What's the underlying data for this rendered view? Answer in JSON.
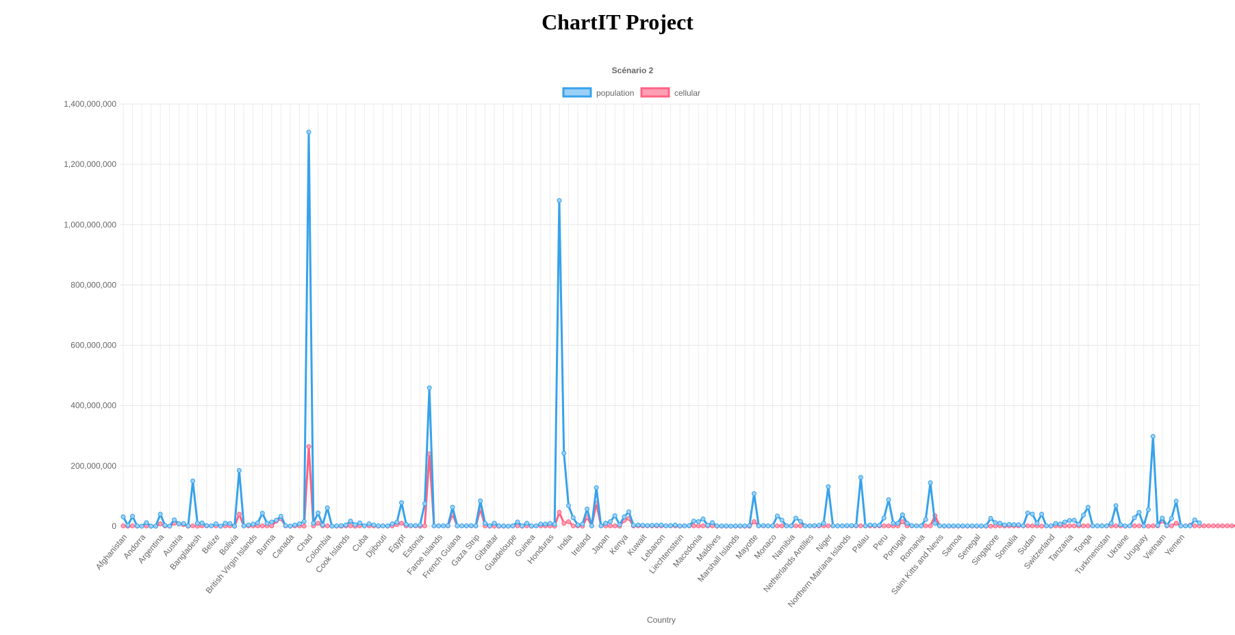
{
  "page": {
    "title": "ChartIT Project"
  },
  "chart_data": {
    "type": "line",
    "title": "Scénario 2",
    "xlabel": "Country",
    "ylabel": "",
    "ylim": [
      0,
      1400000000
    ],
    "yticks": [
      0,
      200000000,
      400000000,
      600000000,
      800000000,
      1000000000,
      1200000000,
      1400000000
    ],
    "ytick_labels": [
      "0",
      "200,000,000",
      "400,000,000",
      "600,000,000",
      "800,000,000",
      "1,000,000,000",
      "1,200,000,000",
      "1,400,000,000"
    ],
    "legend_position": "top-center",
    "grid": true,
    "x_tick_labels": [
      "Afghanistan",
      "Andorra",
      "Argentina",
      "Austria",
      "Bangladesh",
      "Belize",
      "Bolivia",
      "British Virgin Islands",
      "Burma",
      "Canada",
      "Chad",
      "Colombia",
      "Cook Islands",
      "Cuba",
      "Djibouti",
      "Egypt",
      "Estonia",
      "Faroe Islands",
      "French Guiana",
      "Gaza Strip",
      "Gibraltar",
      "Guadeloupe",
      "Guinea",
      "Honduras",
      "India",
      "Ireland",
      "Japan",
      "Kenya",
      "Kuwait",
      "Lebanon",
      "Liechtenstein",
      "Macedonia",
      "Maldives",
      "Marshall Islands",
      "Mayotte",
      "Monaco",
      "Namibia",
      "Netherlands Antilles",
      "Niger",
      "Northern Mariana Islands",
      "Palau",
      "Peru",
      "Portugal",
      "Romania",
      "Saint Kitts and Nevis",
      "Samoa",
      "Senegal",
      "Singapore",
      "Somalia",
      "Sudan",
      "Switzerland",
      "Tanzania",
      "Tonga",
      "Turkmenistan",
      "Ukraine",
      "Uruguay",
      "Vietnam",
      "Yemen"
    ],
    "points_per_label": 4,
    "series": [
      {
        "name": "population",
        "color": "#36a2eb",
        "fill": "#9ad0f5",
        "values": [
          31000000,
          3000000,
          33000000,
          1000000,
          100000,
          12000000,
          69000,
          100000,
          40000000,
          3000000,
          100000,
          21000000,
          8000000,
          9000000,
          1000000,
          150000000,
          10000000,
          11000000,
          2000000,
          1000000,
          8000000,
          300000,
          10000000,
          9000000,
          300000,
          185000000,
          1000000,
          4000000,
          7000000,
          11000000,
          43000000,
          10000000,
          14000000,
          20000000,
          33000000,
          2000000,
          300000,
          4000000,
          8000000,
          16000000,
          1307000000,
          10000000,
          44000000,
          4000000,
          61000000,
          100000,
          1000000,
          2000000,
          4000000,
          17000000,
          5000000,
          11000000,
          1000000,
          8000000,
          4000000,
          1000000,
          1000000,
          1000000,
          8000000,
          13000000,
          78000000,
          6000000,
          2000000,
          2000000,
          4000000,
          75000000,
          459000000,
          1000000,
          1000000,
          1000000,
          2000000,
          63000000,
          1000000,
          1000000,
          1000000,
          2000000,
          1000000,
          84000000,
          10000000,
          1000000,
          10000000,
          1000000,
          1000000,
          100000,
          1000000,
          14000000,
          1000000,
          10000000,
          1000000,
          1000000,
          7000000,
          7000000,
          9000000,
          7000000,
          1080000000,
          242000000,
          68000000,
          28000000,
          4000000,
          7000000,
          57000000,
          1000000,
          128000000,
          1000000,
          10000000,
          15000000,
          35000000,
          5000000,
          31000000,
          48000000,
          3000000,
          4000000,
          3000000,
          2000000,
          3000000,
          3000000,
          4000000,
          1000000,
          2000000,
          4000000,
          1000000,
          1000000,
          2000000,
          17000000,
          15000000,
          24000000,
          3000000,
          12000000,
          1000000,
          1000000,
          1000000,
          100000,
          1000000,
          1000000,
          1000000,
          2000000,
          108000000,
          1000000,
          2000000,
          1000000,
          1000000,
          34000000,
          20000000,
          1000000,
          1000000,
          27000000,
          16000000,
          1000000,
          1000000,
          2000000,
          3000000,
          10000000,
          131000000,
          1000000,
          1000000,
          1000000,
          2000000,
          2000000,
          2000000,
          162000000,
          1000000,
          4000000,
          3000000,
          3000000,
          27000000,
          88000000,
          10000000,
          10000000,
          38000000,
          10000000,
          2000000,
          1000000,
          1000000,
          22000000,
          144000000,
          10000000,
          1000000,
          1000000,
          1000000,
          1000000,
          1000000,
          1000000,
          1000000,
          1000000,
          1000000,
          1000000,
          1000000,
          26000000,
          12000000,
          10000000,
          4000000,
          6000000,
          5000000,
          5000000,
          1000000,
          44000000,
          40000000,
          10000000,
          40000000,
          1000000,
          1000000,
          9000000,
          7000000,
          14000000,
          19000000,
          20000000,
          6000000,
          37000000,
          63000000,
          1000000,
          1000000,
          1000000,
          1000000,
          10000000,
          68000000,
          5000000,
          1000000,
          1000000,
          28000000,
          46000000,
          1000000,
          55000000,
          298000000,
          3000000,
          27000000,
          2000000,
          26000000,
          83000000,
          1000000,
          1000000,
          1000000,
          21000000,
          11000000
        ]
      },
      {
        "name": "cellular",
        "color": "#ff6384",
        "fill": "#ff9fb3",
        "values": [
          1000000,
          100000,
          1000000,
          100000,
          100000,
          500000,
          100000,
          100000,
          8000000,
          1000000,
          100000,
          10000000,
          8000000,
          5000000,
          100000,
          1000000,
          100000,
          1000000,
          1000000,
          1000000,
          1000000,
          100000,
          1000000,
          1000000,
          100000,
          40000000,
          1000000,
          1000000,
          1000000,
          1000000,
          1000000,
          1000000,
          1000000,
          17000000,
          25000000,
          1000000,
          100000,
          1000000,
          1000000,
          100000,
          264000000,
          1000000,
          10000000,
          1000000,
          1000000,
          100000,
          100000,
          100000,
          1000000,
          1000000,
          100000,
          1000000,
          1000000,
          1000000,
          1000000,
          100000,
          1000000,
          100000,
          1000000,
          5000000,
          10000000,
          1000000,
          1000000,
          1000000,
          100000,
          1000000,
          240000000,
          1000000,
          1000000,
          1000000,
          1000000,
          40000000,
          1000000,
          1000000,
          1000000,
          1000000,
          1000000,
          57000000,
          1000000,
          100000,
          100000,
          100000,
          100000,
          100000,
          1000000,
          1000000,
          100000,
          1000000,
          100000,
          1000000,
          1000000,
          1000000,
          1000000,
          100000,
          46000000,
          10000000,
          15000000,
          1000000,
          1000000,
          100000,
          30000000,
          1000000,
          76000000,
          1000000,
          1000000,
          1000000,
          1000000,
          100000,
          19000000,
          26000000,
          1000000,
          1000000,
          1000000,
          1000000,
          1000000,
          1000000,
          1000000,
          1000000,
          1000000,
          1000000,
          100000,
          1000000,
          1000000,
          1000000,
          1000000,
          1000000,
          1000000,
          1000000,
          100000,
          100000,
          100000,
          100000,
          100000,
          100000,
          100000,
          100000,
          15000000,
          1000000,
          1000000,
          1000000,
          1000000,
          1000000,
          1000000,
          1000000,
          1000000,
          1000000,
          1000000,
          1000000,
          1000000,
          1000000,
          1000000,
          1000000,
          1000000,
          1000000,
          1000000,
          1000000,
          1000000,
          1000000,
          1000000,
          1000000,
          1000000,
          1000000,
          1000000,
          1000000,
          1000000,
          1000000,
          1000000,
          1000000,
          15000000,
          1000000,
          1000000,
          1000000,
          1000000,
          1000000,
          1000000,
          35000000,
          1000000,
          100000,
          100000,
          100000,
          100000,
          100000,
          100000,
          100000,
          100000,
          100000,
          100000,
          100000,
          1000000,
          1000000,
          1000000,
          1000000,
          1000000,
          1000000,
          1000000,
          1000000,
          1000000,
          1000000,
          100000,
          1000000,
          100000,
          1000000,
          1000000,
          1000000,
          1000000,
          1000000,
          1000000,
          1000000,
          1000000,
          1000000,
          1000000,
          1000000,
          1000000,
          1000000,
          1000000,
          1000000,
          100000,
          1000000,
          1000000,
          1000000,
          1000000,
          100000,
          1000000,
          1000000,
          18000000,
          1000000,
          1000000,
          10000000,
          1000000,
          1000000,
          3000000,
          1000000,
          1000000,
          1000000,
          1000000,
          1000000,
          1000000,
          1000000,
          1000000,
          1000000,
          1000000
        ]
      }
    ]
  }
}
